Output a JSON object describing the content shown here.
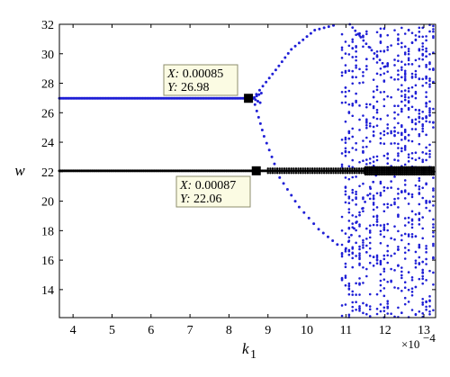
{
  "chart_data": {
    "type": "scatter",
    "title": "",
    "xlabel": "k",
    "xlabel_sub": "1",
    "ylabel": "w",
    "x_exponent_label": "×10",
    "x_exponent_power": "−4",
    "xlim": [
      3.65,
      13.3
    ],
    "ylim": [
      12.1,
      32
    ],
    "x_scale_note": "x values in units of 1e-4",
    "xticks": [
      4,
      5,
      6,
      7,
      8,
      9,
      10,
      11,
      12,
      13
    ],
    "yticks": [
      14,
      16,
      18,
      20,
      22,
      24,
      26,
      28,
      30,
      32
    ],
    "grid": false,
    "legend": "none",
    "series": [
      {
        "color": "#1f1fd6",
        "upper_branch_y": 26.98,
        "upper_branch_x_range": [
          3.65,
          8.6
        ],
        "bifurcation_x": 8.62,
        "loop_upper_ends": [
          [
            8.62,
            26.98
          ],
          [
            9.2,
            28.9
          ],
          [
            9.6,
            30.3
          ],
          [
            10.2,
            31.6
          ],
          [
            10.8,
            32.0
          ]
        ],
        "loop_lower_points": [
          [
            8.62,
            26.98
          ],
          [
            8.9,
            24.4
          ],
          [
            9.3,
            21.6
          ],
          [
            9.8,
            19.6
          ],
          [
            10.3,
            18.1
          ],
          [
            10.9,
            16.8
          ]
        ],
        "chaotic_region_x": [
          10.9,
          13.3
        ]
      },
      {
        "color": "#000000",
        "branch_y": 22.06,
        "branch_x_range": [
          3.65,
          13.3
        ],
        "dense_region_x": [
          11.5,
          13.3
        ]
      }
    ],
    "datatips": [
      {
        "x_label": "X:",
        "x_value": "0.00085",
        "y_label": "Y:",
        "y_value": "26.98",
        "point": [
          8.5,
          26.98
        ]
      },
      {
        "x_label": "X:",
        "x_value": "0.00087",
        "y_label": "Y:",
        "y_value": "22.06",
        "point": [
          8.7,
          22.06
        ]
      }
    ]
  }
}
